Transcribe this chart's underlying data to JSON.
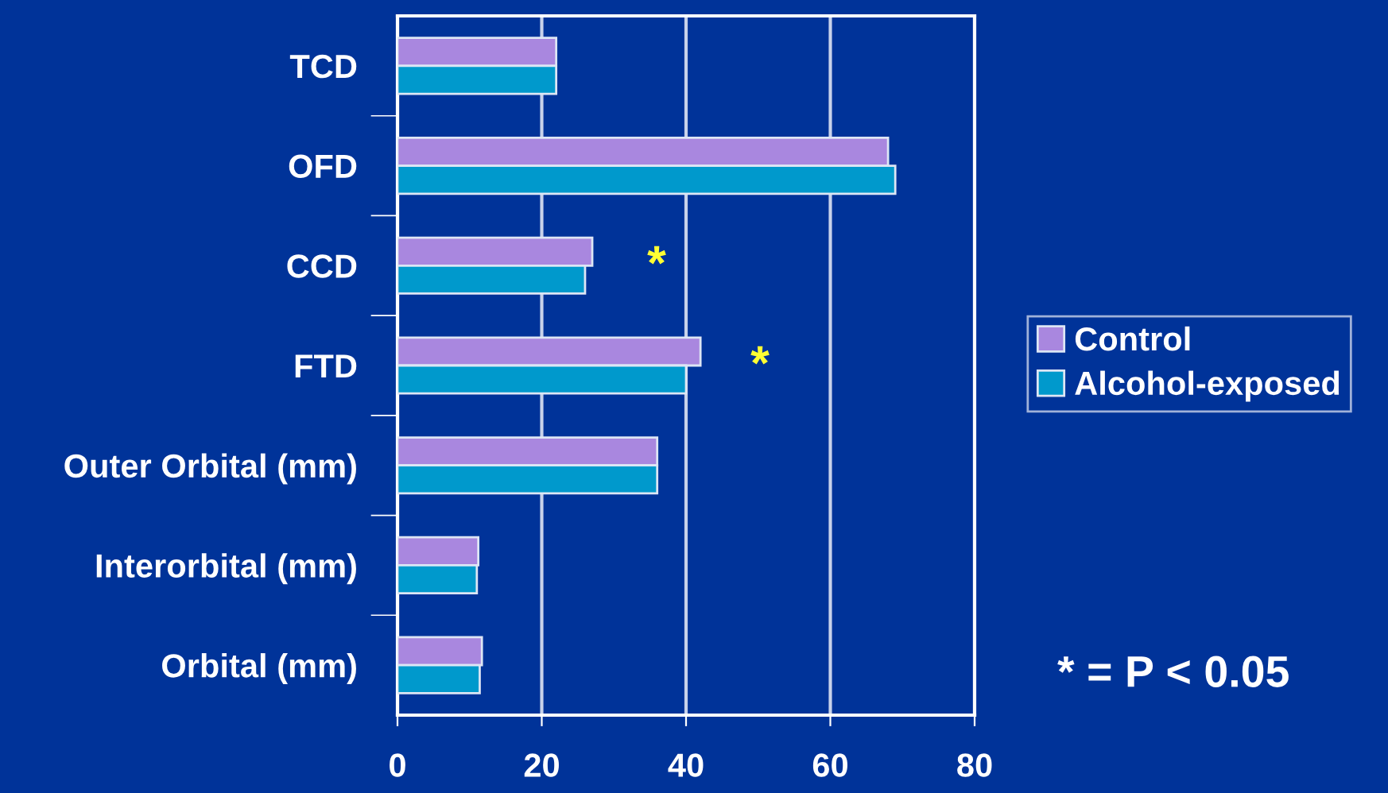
{
  "chart_data": {
    "type": "bar",
    "orientation": "horizontal",
    "categories": [
      "TCD",
      "OFD",
      "CCD",
      "FTD",
      "Outer Orbital (mm)",
      "Interorbital (mm)",
      "Orbital (mm)"
    ],
    "series": [
      {
        "name": "Control",
        "color": "#a987df",
        "values": [
          22,
          68,
          27,
          42,
          36,
          11.2,
          11.7
        ]
      },
      {
        "name": "Alcohol-exposed",
        "color": "#0099cc",
        "values": [
          22,
          69,
          26,
          40,
          36,
          11.0,
          11.4
        ]
      }
    ],
    "xlim": [
      0,
      80
    ],
    "xticks": [
      0,
      20,
      40,
      60,
      80
    ],
    "grid": "x",
    "legend": "right",
    "annotations": [
      "*",
      "*",
      "* = P < 0.05"
    ]
  }
}
